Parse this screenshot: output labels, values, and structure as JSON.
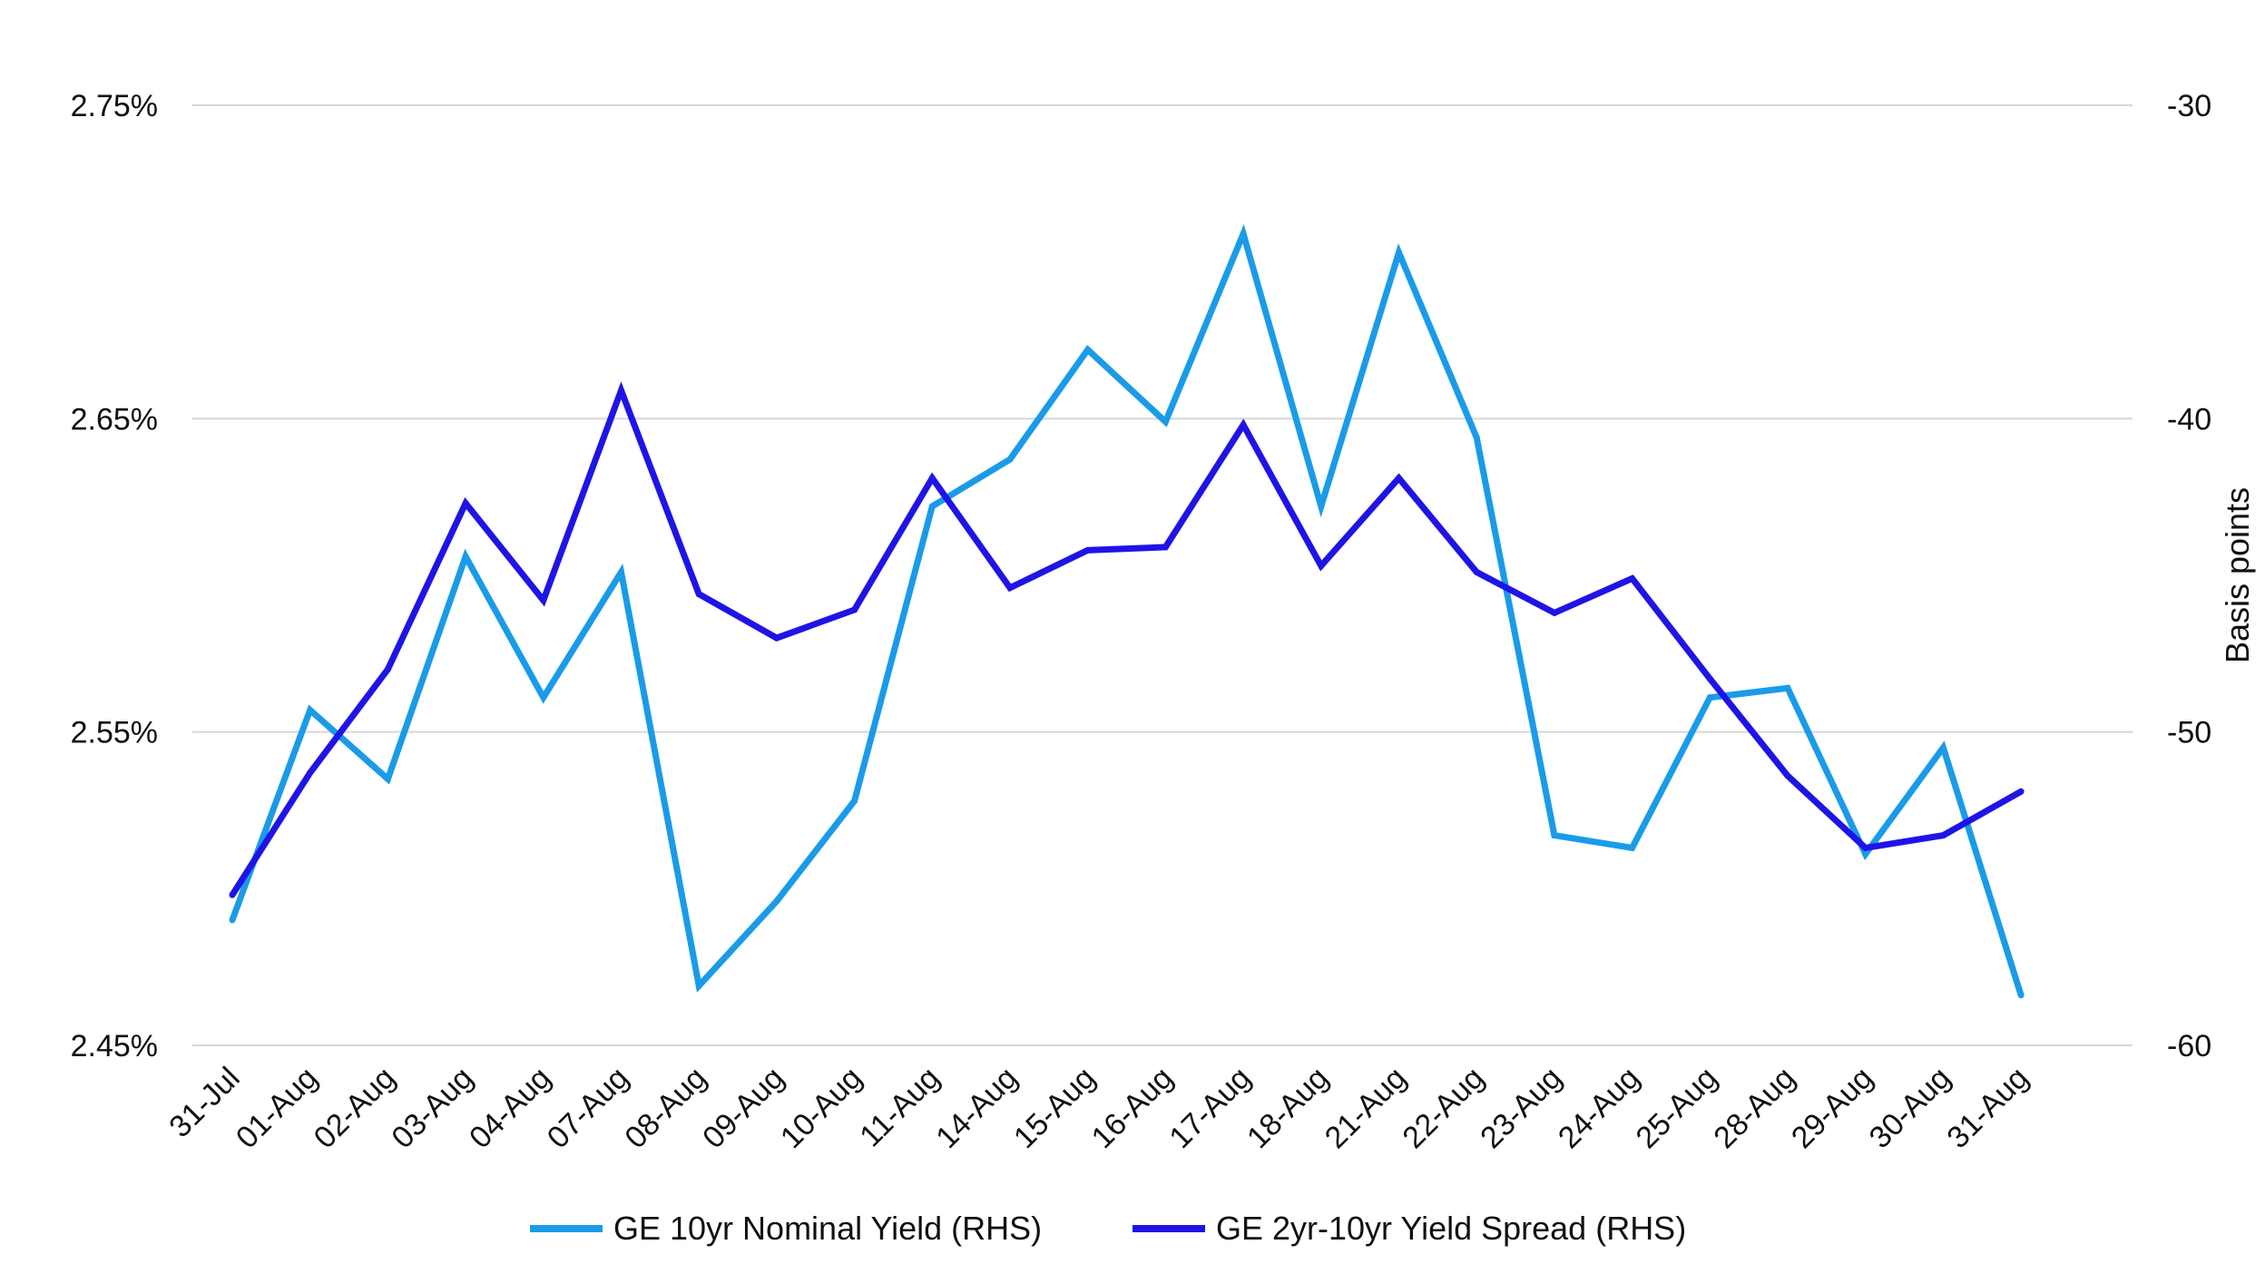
{
  "chart_data": {
    "type": "line",
    "title": "",
    "xlabel": "",
    "ylabel_left": "",
    "ylabel_right": "Basis points",
    "categories": [
      "31-Jul",
      "01-Aug",
      "02-Aug",
      "03-Aug",
      "04-Aug",
      "07-Aug",
      "08-Aug",
      "09-Aug",
      "10-Aug",
      "11-Aug",
      "14-Aug",
      "15-Aug",
      "16-Aug",
      "17-Aug",
      "18-Aug",
      "21-Aug",
      "22-Aug",
      "23-Aug",
      "24-Aug",
      "25-Aug",
      "28-Aug",
      "29-Aug",
      "30-Aug",
      "31-Aug"
    ],
    "left_axis": {
      "ylim": [
        2.45,
        2.75
      ],
      "ticks": [
        2.45,
        2.55,
        2.65,
        2.75
      ],
      "tick_labels": [
        "2.45%",
        "2.55%",
        "2.65%",
        "2.75%"
      ]
    },
    "right_axis": {
      "ylim": [
        -60,
        -30
      ],
      "ticks": [
        -60,
        -50,
        -40,
        -30
      ],
      "tick_labels": [
        "-60",
        "-50",
        "-40",
        "-30"
      ]
    },
    "grid": true,
    "legend_position": "bottom",
    "series": [
      {
        "name": "GE 10yr Nominal Yield (RHS)",
        "axis": "left",
        "color": "#1a9be8",
        "values": [
          2.49,
          2.557,
          2.535,
          2.606,
          2.561,
          2.601,
          2.469,
          2.496,
          2.528,
          2.622,
          2.637,
          2.672,
          2.649,
          2.709,
          2.622,
          2.703,
          2.644,
          2.517,
          2.513,
          2.561,
          2.564,
          2.511,
          2.545,
          2.466
        ]
      },
      {
        "name": "GE 2yr-10yr Yield Spread (RHS)",
        "axis": "right",
        "color": "#1f14e6",
        "values": [
          -55.2,
          -51.3,
          -48.0,
          -42.7,
          -45.8,
          -39.1,
          -45.6,
          -47.0,
          -46.1,
          -41.9,
          -45.4,
          -44.2,
          -44.1,
          -40.2,
          -44.7,
          -41.9,
          -44.9,
          -46.2,
          -45.1,
          -48.3,
          -51.4,
          -53.7,
          -53.3,
          -51.9
        ]
      }
    ]
  }
}
